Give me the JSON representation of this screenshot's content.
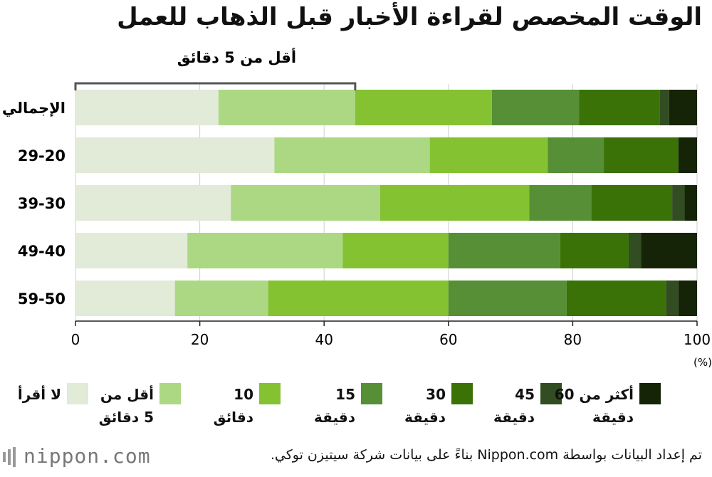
{
  "title": "الوقت المخصص لقراءة الأخبار قبل الذهاب للعمل",
  "source": "تم إعداد البيانات بواسطة Nippon.com بناءً على بيانات شركة سيتيزن توكي.",
  "logo": "nippon.com",
  "chart_data": {
    "type": "bar",
    "orientation": "horizontal",
    "stacked": true,
    "categories": [
      "الإجمالي",
      "29-20",
      "39-30",
      "49-40",
      "59-50"
    ],
    "series": [
      {
        "name": "لا أقرأ",
        "color": "#e2ead8",
        "values": [
          23,
          32,
          25,
          18,
          16
        ]
      },
      {
        "name": "أقل من 5 دقائق",
        "color": "#acd884",
        "values": [
          22,
          25,
          24,
          25,
          15
        ]
      },
      {
        "name": "10 دقائق",
        "color": "#84c232",
        "values": [
          22,
          19,
          24,
          17,
          29
        ]
      },
      {
        "name": "15 دقيقة",
        "color": "#578f36",
        "values": [
          14,
          9,
          10,
          18,
          19
        ]
      },
      {
        "name": "30 دقيقة",
        "color": "#3a7207",
        "values": [
          13,
          12,
          13,
          11,
          16
        ]
      },
      {
        "name": "45 دقيقة",
        "color": "#324d22",
        "values": [
          1.5,
          0,
          2,
          2,
          2
        ]
      },
      {
        "name": "أكثر من 60 دقيقة",
        "color": "#152307",
        "values": [
          4.5,
          3,
          2,
          9,
          3
        ]
      }
    ],
    "xlim": [
      0,
      100
    ],
    "xticks": [
      "0",
      "20",
      "40",
      "60",
      "80",
      "100"
    ],
    "unit": "(%)",
    "annotation": {
      "text": "أقل من 5 دقائق",
      "from": 0,
      "to": 45
    },
    "legend": "bottom"
  }
}
